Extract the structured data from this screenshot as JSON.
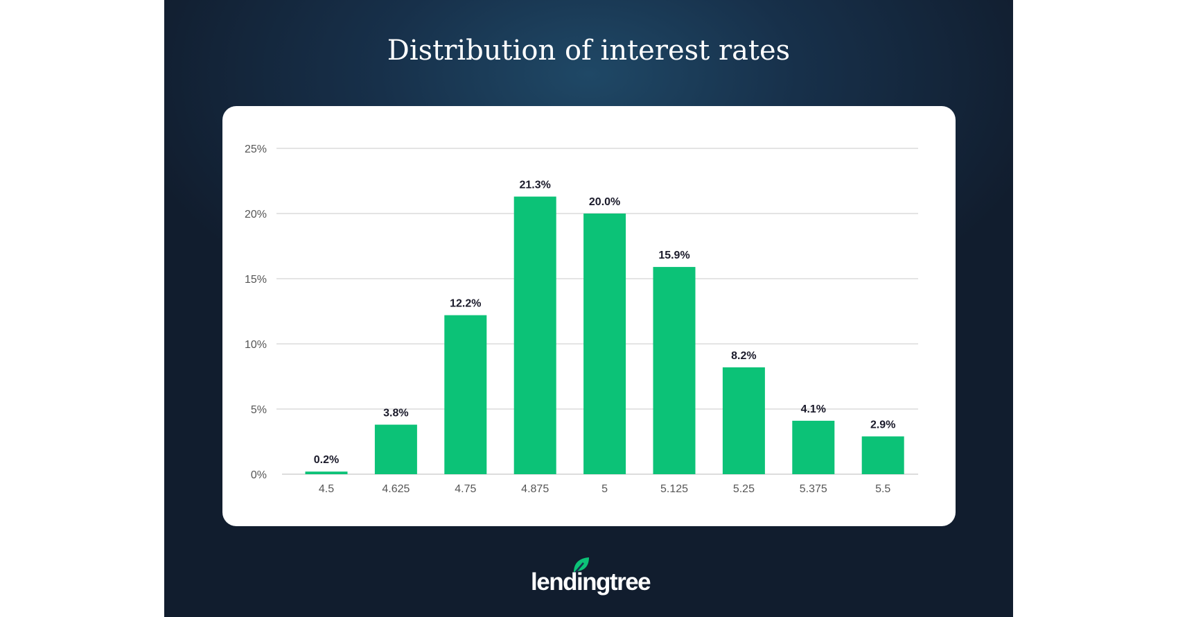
{
  "chart_data": {
    "type": "bar",
    "title": "Distribution of interest rates",
    "categories": [
      "4.5",
      "4.625",
      "4.75",
      "4.875",
      "5",
      "5.125",
      "5.25",
      "5.375",
      "5.5"
    ],
    "values": [
      0.2,
      3.8,
      12.2,
      21.3,
      20.0,
      15.9,
      8.2,
      4.1,
      2.9
    ],
    "data_labels": [
      "0.2%",
      "3.8%",
      "12.2%",
      "21.3%",
      "20.0%",
      "15.9%",
      "8.2%",
      "4.1%",
      "2.9%"
    ],
    "xlabel": "",
    "ylabel": "",
    "ylim": [
      0,
      25
    ],
    "yticks": [
      "0%",
      "5%",
      "10%",
      "15%",
      "20%",
      "25%"
    ],
    "grid": true,
    "bar_color": "#0cc277"
  },
  "brand": {
    "logo_text": "lendingtree",
    "logo_color": "#0cc277"
  }
}
